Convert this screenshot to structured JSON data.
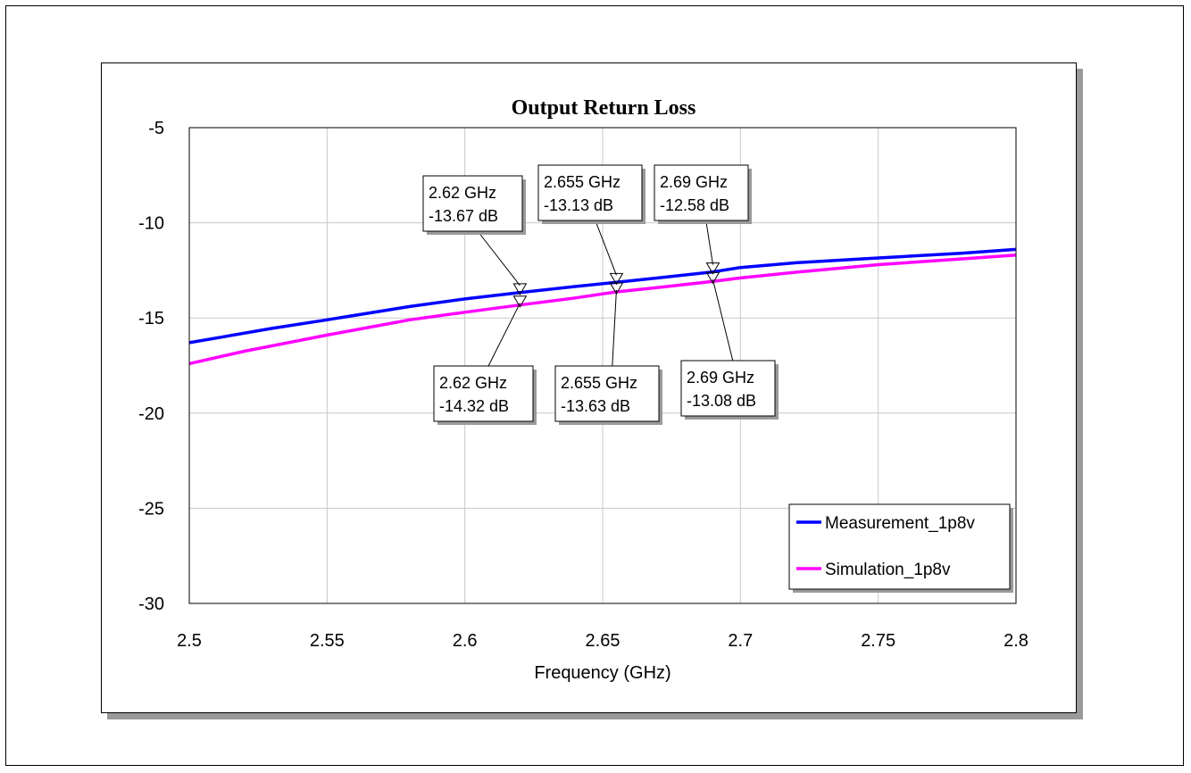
{
  "chart_data": {
    "type": "line",
    "title": "Output Return Loss",
    "xlabel": "Frequency (GHz)",
    "ylabel": "",
    "xlim": [
      2.5,
      2.8
    ],
    "ylim": [
      -30,
      -5
    ],
    "grid": true,
    "xticks": [
      "2.5",
      "2.55",
      "2.6",
      "2.65",
      "2.7",
      "2.75",
      "2.8"
    ],
    "yticks": [
      "-5",
      "-10",
      "-15",
      "-20",
      "-25",
      "-30"
    ],
    "legend_position": "bottom-right",
    "series": [
      {
        "name": "Measurement_1p8v",
        "color": "#0000ff",
        "x": [
          2.5,
          2.53,
          2.55,
          2.58,
          2.6,
          2.62,
          2.64,
          2.655,
          2.67,
          2.69,
          2.7,
          2.72,
          2.75,
          2.78,
          2.8
        ],
        "y": [
          -16.3,
          -15.55,
          -15.1,
          -14.4,
          -14.0,
          -13.67,
          -13.35,
          -13.13,
          -12.9,
          -12.58,
          -12.35,
          -12.1,
          -11.85,
          -11.6,
          -11.4
        ]
      },
      {
        "name": "Simulation_1p8v",
        "color": "#ff00ff",
        "x": [
          2.5,
          2.52,
          2.55,
          2.58,
          2.6,
          2.62,
          2.64,
          2.655,
          2.67,
          2.69,
          2.7,
          2.72,
          2.75,
          2.78,
          2.8
        ],
        "y": [
          -17.4,
          -16.75,
          -15.9,
          -15.1,
          -14.7,
          -14.32,
          -13.95,
          -13.63,
          -13.4,
          -13.08,
          -12.9,
          -12.6,
          -12.2,
          -11.9,
          -11.7
        ]
      }
    ],
    "markers": [
      {
        "series": 0,
        "x": 2.62,
        "y": -13.67,
        "freq": "2.62 GHz",
        "value": "-13.67 dB",
        "placement": "above"
      },
      {
        "series": 0,
        "x": 2.655,
        "y": -13.13,
        "freq": "2.655 GHz",
        "value": "-13.13 dB",
        "placement": "above"
      },
      {
        "series": 0,
        "x": 2.69,
        "y": -12.58,
        "freq": "2.69 GHz",
        "value": "-12.58 dB",
        "placement": "above"
      },
      {
        "series": 1,
        "x": 2.62,
        "y": -14.32,
        "freq": "2.62 GHz",
        "value": "-14.32 dB",
        "placement": "below"
      },
      {
        "series": 1,
        "x": 2.655,
        "y": -13.63,
        "freq": "2.655 GHz",
        "value": "-13.63 dB",
        "placement": "below"
      },
      {
        "series": 1,
        "x": 2.69,
        "y": -13.08,
        "freq": "2.69 GHz",
        "value": "-13.08 dB",
        "placement": "below"
      }
    ]
  }
}
